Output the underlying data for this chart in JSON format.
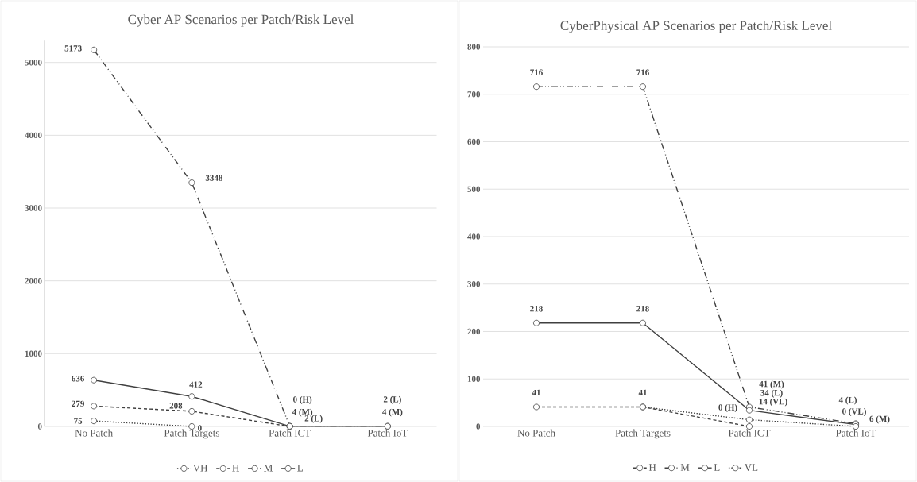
{
  "chart_data": [
    {
      "type": "line",
      "title": "Cyber AP Scenarios per Patch/Risk Level",
      "categories": [
        "No Patch",
        "Patch Targets",
        "Patch ICT",
        "Patch IoT"
      ],
      "series": [
        {
          "name": "VH",
          "color": "#404040",
          "line_style": "dotted",
          "values": [
            75,
            0,
            null,
            null
          ],
          "value_labels": [
            "75",
            "0",
            null,
            null
          ]
        },
        {
          "name": "H",
          "color": "#404040",
          "line_style": "dashed",
          "values": [
            279,
            208,
            0,
            null
          ],
          "value_labels": [
            "279",
            "208",
            "0 (H)",
            null
          ]
        },
        {
          "name": "M",
          "color": "#404040",
          "line_style": "dashdotdotted",
          "values": [
            5173,
            3348,
            4,
            4
          ],
          "value_labels": [
            "5173",
            "3348",
            "4 (M)",
            "4 (M)"
          ]
        },
        {
          "name": "L",
          "color": "#404040",
          "line_style": "solid",
          "values": [
            636,
            412,
            2,
            2
          ],
          "value_labels": [
            "636",
            "412",
            "2 (L)",
            "2 (L)"
          ]
        }
      ],
      "ylim": [
        0,
        5300
      ],
      "yticks": [
        0,
        1000,
        2000,
        3000,
        4000,
        5000
      ],
      "grid": "y",
      "legend": "bottom",
      "marker": "circle"
    },
    {
      "type": "line",
      "title": "CyberPhysical AP Scenarios per Patch/Risk Level",
      "categories": [
        "No Patch",
        "Patch Targets",
        "Patch ICT",
        "Patch IoT"
      ],
      "series": [
        {
          "name": "H",
          "color": "#404040",
          "line_style": "dashed",
          "values": [
            41,
            41,
            0,
            null
          ],
          "value_labels": [
            "41",
            "41",
            "0 (H)",
            null
          ]
        },
        {
          "name": "M",
          "color": "#404040",
          "line_style": "dashdotdotted",
          "values": [
            716,
            716,
            41,
            6
          ],
          "value_labels": [
            "716",
            "716",
            "41 (M)",
            "6 (M)"
          ]
        },
        {
          "name": "L",
          "color": "#404040",
          "line_style": "solid",
          "values": [
            218,
            218,
            34,
            4
          ],
          "value_labels": [
            "218",
            "218",
            "34 (L)",
            "4 (L)"
          ]
        },
        {
          "name": "VL",
          "color": "#404040",
          "line_style": "dotted",
          "values": [
            null,
            41,
            14,
            0
          ],
          "value_labels": [
            null,
            null,
            "14 (VL)",
            "0 (VL)"
          ]
        }
      ],
      "ylim": [
        0,
        800
      ],
      "yticks": [
        0,
        100,
        200,
        300,
        400,
        500,
        600,
        700,
        800
      ],
      "grid": "y",
      "legend": "bottom",
      "marker": "circle"
    }
  ]
}
